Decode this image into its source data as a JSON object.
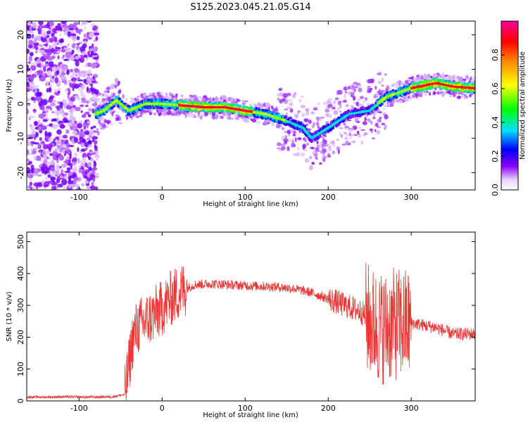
{
  "title": "S125.2023.045.21.05.G14",
  "chart_data": [
    {
      "type": "heatmap",
      "xlabel": "Height of straight line (km)",
      "ylabel": "Frequency (Hz)",
      "xlim": [
        -163,
        377
      ],
      "ylim": [
        -25,
        24
      ],
      "xticks": [
        -100,
        0,
        100,
        200,
        300
      ],
      "yticks": [
        -20,
        -10,
        0,
        10,
        20
      ],
      "xtick_labels": [
        "-100",
        "0",
        "100",
        "200",
        "300"
      ],
      "ytick_labels": [
        "-20",
        "-10",
        "0",
        "10",
        "20"
      ],
      "ridge": {
        "x": [
          -80,
          -70,
          -55,
          -40,
          -20,
          0,
          25,
          50,
          75,
          100,
          125,
          150,
          170,
          180,
          200,
          225,
          250,
          270,
          300,
          330,
          350,
          377
        ],
        "y": [
          -3,
          -2,
          1,
          -2,
          0,
          0,
          -0.5,
          -1,
          -1,
          -2,
          -3,
          -5,
          -7,
          -10,
          -7,
          -3,
          -2,
          2,
          4.5,
          6,
          5,
          4.5
        ]
      },
      "colorbar": {
        "label": "Normalized spectral amplitude",
        "range": [
          0,
          1
        ],
        "ticks": [
          0.0,
          0.2,
          0.4,
          0.6,
          0.8
        ],
        "tick_labels": [
          "0.0",
          "0.2",
          "0.4",
          "0.6",
          "0.8"
        ],
        "colors": [
          "#ffffff",
          "#8a00ff",
          "#0000ff",
          "#00e0ff",
          "#00ff00",
          "#ffff00",
          "#ff8800",
          "#ff0000",
          "#ff0099"
        ]
      },
      "grid": false
    },
    {
      "type": "line",
      "xlabel": "Height of straight line (km)",
      "ylabel": "SNR (10 * v/v)",
      "xlim": [
        -163,
        377
      ],
      "ylim": [
        0,
        530
      ],
      "xticks": [
        -100,
        0,
        100,
        200,
        300
      ],
      "yticks": [
        0,
        100,
        200,
        300,
        400,
        500
      ],
      "xtick_labels": [
        "-100",
        "0",
        "100",
        "200",
        "300"
      ],
      "ytick_labels": [
        "0",
        "100",
        "200",
        "300",
        "400",
        "500"
      ],
      "series": [
        {
          "color": "#ee3333",
          "x": [
            -163,
            -140,
            -120,
            -100,
            -80,
            -60,
            -45,
            -40,
            -35,
            -30,
            -20,
            -10,
            0,
            10,
            20,
            30,
            40,
            60,
            80,
            100,
            120,
            140,
            160,
            180,
            200,
            220,
            240,
            250,
            260,
            270,
            280,
            290,
            300,
            310,
            330,
            350,
            377
          ],
          "y": [
            12,
            12,
            13,
            12,
            12,
            13,
            20,
            110,
            200,
            230,
            250,
            270,
            290,
            320,
            340,
            355,
            365,
            368,
            365,
            362,
            360,
            358,
            352,
            340,
            320,
            300,
            280,
            250,
            230,
            230,
            240,
            240,
            245,
            240,
            230,
            210,
            210
          ]
        }
      ],
      "grid": false
    }
  ]
}
